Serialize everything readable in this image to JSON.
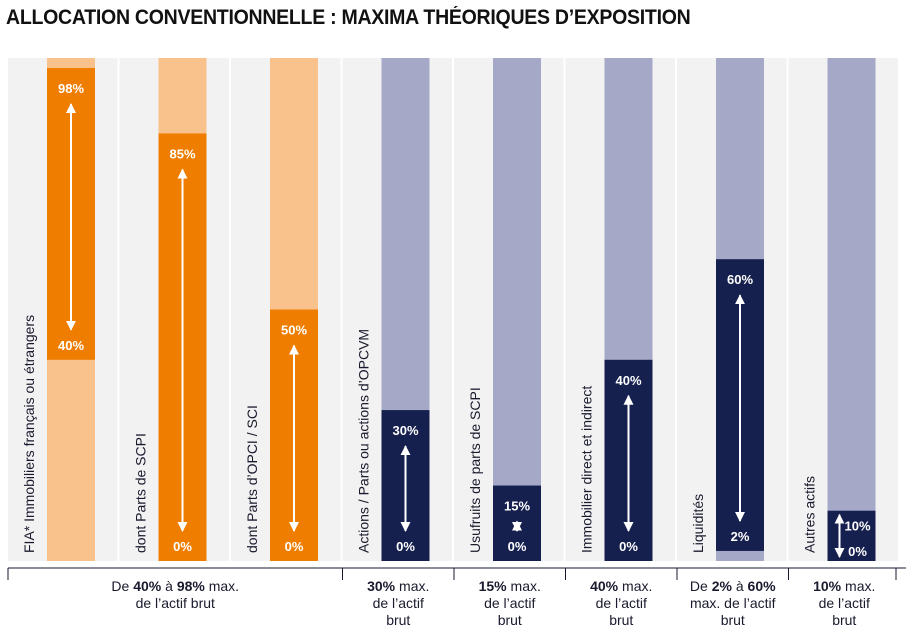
{
  "title": "ALLOCATION CONVENTIONNELLE : MAXIMA THÉORIQUES D’EXPOSITION",
  "colors": {
    "orange": "#EF7D00",
    "orange_light": "#F9C28C",
    "navy": "#15204F",
    "lavender": "#A6A8C8",
    "bg_stripe": "#F2F2F2",
    "text": "#1a1a2e"
  },
  "chart_data": {
    "type": "bar",
    "ylim": [
      0,
      100
    ],
    "bars": [
      {
        "label": "FIA* Immobiliers français ou étrangers",
        "min": 40,
        "max": 98,
        "min_label": "40%",
        "max_label": "98%",
        "group": "orange"
      },
      {
        "label": "dont Parts de SCPI",
        "min": 0,
        "max": 85,
        "min_label": "0%",
        "max_label": "85%",
        "group": "orange"
      },
      {
        "label": "dont Parts d’OPCI / SCI",
        "min": 0,
        "max": 50,
        "min_label": "0%",
        "max_label": "50%",
        "group": "orange"
      },
      {
        "label": "Actions / Parts ou actions d’OPCVM",
        "min": 0,
        "max": 30,
        "min_label": "0%",
        "max_label": "30%",
        "group": "navy"
      },
      {
        "label": "Usufruits de parts de SCPI",
        "min": 0,
        "max": 15,
        "min_label": "0%",
        "max_label": "15%",
        "group": "navy"
      },
      {
        "label": "Immobilier direct et indirect",
        "min": 0,
        "max": 40,
        "min_label": "0%",
        "max_label": "40%",
        "group": "navy"
      },
      {
        "label": "Liquidités",
        "min": 2,
        "max": 60,
        "min_label": "2%",
        "max_label": "60%",
        "group": "navy"
      },
      {
        "label": "Autres actifs",
        "min": 0,
        "max": 10,
        "min_label": "0%",
        "max_label": "10%",
        "group": "navy"
      }
    ],
    "captions": [
      {
        "bars": [
          0,
          1,
          2
        ],
        "parts": [
          "De ",
          "40%",
          " à ",
          "98%",
          " max.",
          "\n",
          "de l’actif brut"
        ]
      },
      {
        "bars": [
          3
        ],
        "parts": [
          "30%",
          " max.",
          "\n",
          "de l’actif",
          "\n",
          "brut"
        ]
      },
      {
        "bars": [
          4
        ],
        "parts": [
          "15%",
          " max.",
          "\n",
          "de l’actif",
          "\n",
          "brut"
        ]
      },
      {
        "bars": [
          5
        ],
        "parts": [
          "40%",
          " max.",
          "\n",
          "de l’actif",
          "\n",
          "brut"
        ]
      },
      {
        "bars": [
          6
        ],
        "parts": [
          "De ",
          "2%",
          " à ",
          "60%",
          "\n",
          "max. de l’actif",
          "\n",
          "brut"
        ]
      },
      {
        "bars": [
          7
        ],
        "parts": [
          "10%",
          " max.",
          "\n",
          "de l’actif",
          "\n",
          "brut"
        ]
      }
    ]
  }
}
